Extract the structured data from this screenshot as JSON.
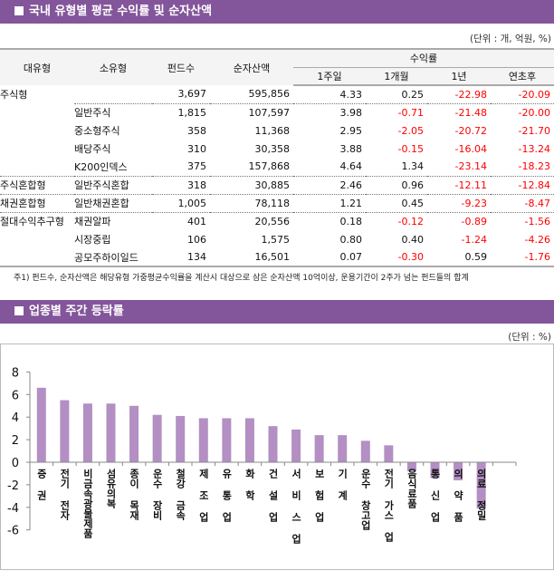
{
  "section1": {
    "title": "국내 유형별 평균 수익률 및 순자산액",
    "unit": "(단위 : 개, 억원, %)"
  },
  "table": {
    "headers": {
      "major": "대유형",
      "minor": "소유형",
      "count": "펀드수",
      "assets": "순자산액",
      "returns": "수익률",
      "w1": "1주일",
      "m1": "1개월",
      "y1": "1년",
      "ytd": "연초후"
    },
    "rows": [
      {
        "major": "주식형",
        "minor": "",
        "count": "3,697",
        "assets": "595,856",
        "w1": "4.33",
        "m1": "0.25",
        "y1": "-22.98",
        "ytd": "-20.09"
      },
      {
        "major": "",
        "minor": "일반주식",
        "count": "1,815",
        "assets": "107,597",
        "w1": "3.98",
        "m1": "-0.71",
        "y1": "-21.48",
        "ytd": "-20.00"
      },
      {
        "major": "",
        "minor": "중소형주식",
        "count": "358",
        "assets": "11,368",
        "w1": "2.95",
        "m1": "-2.05",
        "y1": "-20.72",
        "ytd": "-21.70"
      },
      {
        "major": "",
        "minor": "배당주식",
        "count": "310",
        "assets": "30,358",
        "w1": "3.88",
        "m1": "-0.15",
        "y1": "-16.04",
        "ytd": "-13.24"
      },
      {
        "major": "",
        "minor": "K200인덱스",
        "count": "375",
        "assets": "157,868",
        "w1": "4.64",
        "m1": "1.34",
        "y1": "-23.14",
        "ytd": "-18.23"
      },
      {
        "major": "주식혼합형",
        "minor": "일반주식혼합",
        "count": "318",
        "assets": "30,885",
        "w1": "2.46",
        "m1": "0.96",
        "y1": "-12.11",
        "ytd": "-12.84"
      },
      {
        "major": "채권혼합형",
        "minor": "일반채권혼합",
        "count": "1,005",
        "assets": "78,118",
        "w1": "1.21",
        "m1": "0.45",
        "y1": "-9.23",
        "ytd": "-8.47"
      },
      {
        "major": "절대수익추구형",
        "minor": "채권알파",
        "count": "401",
        "assets": "20,556",
        "w1": "0.18",
        "m1": "-0.12",
        "y1": "-0.89",
        "ytd": "-1.56"
      },
      {
        "major": "",
        "minor": "시장중립",
        "count": "106",
        "assets": "1,575",
        "w1": "0.80",
        "m1": "0.40",
        "y1": "-1.24",
        "ytd": "-4.26"
      },
      {
        "major": "",
        "minor": "공모주하이일드",
        "count": "134",
        "assets": "16,501",
        "w1": "0.07",
        "m1": "-0.30",
        "y1": "0.59",
        "ytd": "-1.76"
      }
    ],
    "note": "주1) 펀드수, 순자산액은 해당유형 가중평균수익률을 계산시 대상으로 삼은 순자산액 10억이상, 운용기간이 2주가 넘는 펀드들의 합계"
  },
  "section2": {
    "title": "업종별 주간 등락률",
    "unit": "(단위 : %)"
  },
  "colors": {
    "header_bar": "#83559a",
    "bar": "#b38fc4",
    "negative": "#ff0000"
  },
  "chart_data": {
    "type": "bar",
    "categories": [
      "증 권",
      "전기 전자",
      "비금속광물제품",
      "섬유의복",
      "종이 목재",
      "운수 장비",
      "철강 금속",
      "제 조 업",
      "유 통 업",
      "화 학",
      "건 설 업",
      "서 비 스 업",
      "보 험 업",
      "기 계",
      "운수 창고업",
      "전기 가스 업",
      "음식료품",
      "통 신 업",
      "의 약 품",
      "의료 정밀"
    ],
    "values": [
      6.6,
      5.5,
      5.2,
      5.2,
      5.0,
      4.2,
      4.1,
      3.9,
      3.9,
      3.9,
      3.2,
      2.9,
      2.4,
      2.4,
      1.9,
      1.5,
      -0.8,
      -1.4,
      -1.6,
      -4.1
    ],
    "ylim": [
      -6,
      8
    ],
    "yticks": [
      8,
      6,
      4,
      2,
      0,
      -2,
      -4,
      -6
    ],
    "grid": false,
    "legend": "none"
  }
}
